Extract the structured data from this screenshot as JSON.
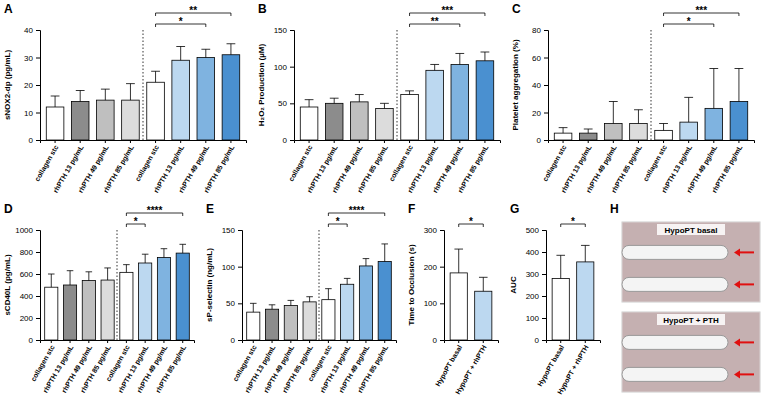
{
  "chart_data": [
    {
      "type": "bar",
      "panel": "A",
      "y_label": "sNOX2-dp (pg/mL)",
      "categories": [
        "collagen stc",
        "rhPTH 13 pg/mL",
        "rhPTH 49 pg/mL",
        "rhPTH 85 pg/mL",
        "collagen stc",
        "rhPTH 13 pg/mL",
        "rhPTH 49 pg/mL",
        "rhPTH 85 pg/mL"
      ],
      "values": [
        12,
        14,
        14.5,
        14.5,
        21,
        29,
        30,
        31
      ],
      "errors": [
        4,
        4,
        4,
        6,
        4,
        5,
        3,
        4
      ],
      "colors": [
        "#ffffff",
        "#8c8c8c",
        "#bfbfbf",
        "#dcdcdc",
        "#ffffff",
        "#bcd8f0",
        "#7fb3e0",
        "#4a90d0"
      ],
      "ylim": [
        0,
        40
      ],
      "yticks": [
        0,
        10,
        20,
        30,
        40
      ],
      "annotations": [
        {
          "text": "**",
          "from": 4,
          "to": 7
        },
        {
          "text": "*",
          "from": 4,
          "to": 6
        }
      ]
    },
    {
      "type": "bar",
      "panel": "B",
      "y_label": "H₂O₂ Production (µM)",
      "categories": [
        "collagen stc",
        "rhPTH 13 pg/mL",
        "rhPTH 49 pg/mL",
        "rhPTH 85 pg/mL",
        "collagen stc",
        "rhPTH 13 pg/mL",
        "rhPTH 49 pg/mL",
        "rhPTH 85 pg/mL"
      ],
      "values": [
        45,
        50,
        52,
        43,
        62,
        95,
        103,
        108
      ],
      "errors": [
        10,
        7,
        10,
        7,
        5,
        8,
        15,
        12
      ],
      "colors": [
        "#ffffff",
        "#8c8c8c",
        "#bfbfbf",
        "#dcdcdc",
        "#ffffff",
        "#bcd8f0",
        "#7fb3e0",
        "#4a90d0"
      ],
      "ylim": [
        0,
        150
      ],
      "yticks": [
        0,
        50,
        100,
        150
      ],
      "annotations": [
        {
          "text": "***",
          "from": 4,
          "to": 7
        },
        {
          "text": "**",
          "from": 4,
          "to": 6
        }
      ]
    },
    {
      "type": "bar",
      "panel": "C",
      "y_label": "Platelet aggregation (%)",
      "categories": [
        "collagen stc",
        "rhPTH 13 pg/mL",
        "rhPTH 49 pg/mL",
        "rhPTH 85 pg/mL",
        "collagen stc",
        "rhPTH 13 pg/mL",
        "rhPTH 49 pg/mL",
        "rhPTH 85 pg/mL"
      ],
      "values": [
        5,
        5,
        12,
        12,
        7,
        13,
        23,
        28
      ],
      "errors": [
        4,
        3,
        16,
        10,
        5,
        18,
        29,
        24
      ],
      "colors": [
        "#ffffff",
        "#8c8c8c",
        "#bfbfbf",
        "#dcdcdc",
        "#ffffff",
        "#bcd8f0",
        "#7fb3e0",
        "#4a90d0"
      ],
      "ylim": [
        0,
        80
      ],
      "yticks": [
        0,
        20,
        40,
        60,
        80
      ],
      "annotations": [
        {
          "text": "***",
          "from": 4,
          "to": 7
        },
        {
          "text": "*",
          "from": 4,
          "to": 6
        }
      ]
    },
    {
      "type": "bar",
      "panel": "D",
      "y_label": "sCD40L (pg/mL)",
      "categories": [
        "collagen stc",
        "rhPTH 13 pg/mL",
        "rhPTH 49 pg/mL",
        "rhPTH 85 pg/mL",
        "collagen stc",
        "rhPTH 13 pg/mL",
        "rhPTH 49 pg/mL",
        "rhPTH 85 pg/mL"
      ],
      "values": [
        480,
        500,
        540,
        545,
        615,
        700,
        750,
        790
      ],
      "errors": [
        120,
        130,
        80,
        110,
        70,
        80,
        80,
        80
      ],
      "colors": [
        "#ffffff",
        "#8c8c8c",
        "#bfbfbf",
        "#dcdcdc",
        "#ffffff",
        "#bcd8f0",
        "#7fb3e0",
        "#4a90d0"
      ],
      "ylim": [
        0,
        1000
      ],
      "yticks": [
        0,
        200,
        400,
        600,
        800,
        1000
      ],
      "annotations": [
        {
          "text": "****",
          "from": 4,
          "to": 7
        },
        {
          "text": "*",
          "from": 4,
          "to": 5
        }
      ]
    },
    {
      "type": "bar",
      "panel": "E",
      "y_label": "sP-selectin (ng/mL)",
      "categories": [
        "collagen stc",
        "rhPTH 13 pg/mL",
        "rhPTH 49 pg/mL",
        "rhPTH 85 pg/mL",
        "collagen stc",
        "rhPTH 13 pg/mL",
        "rhPTH 49 pg/mL",
        "rhPTH 85 pg/mL"
      ],
      "values": [
        38,
        42,
        47,
        52,
        55,
        76,
        101,
        107
      ],
      "errors": [
        12,
        6,
        7,
        7,
        15,
        8,
        10,
        24
      ],
      "colors": [
        "#ffffff",
        "#8c8c8c",
        "#bfbfbf",
        "#dcdcdc",
        "#ffffff",
        "#bcd8f0",
        "#7fb3e0",
        "#4a90d0"
      ],
      "ylim": [
        0,
        150
      ],
      "yticks": [
        0,
        50,
        100,
        150
      ],
      "annotations": [
        {
          "text": "****",
          "from": 4,
          "to": 7
        },
        {
          "text": "*",
          "from": 4,
          "to": 5
        }
      ]
    },
    {
      "type": "bar",
      "panel": "F",
      "y_label": "Time to Occlusion (s)",
      "categories": [
        "HypoPT basal",
        "HypoPT + rhPTH"
      ],
      "values": [
        183,
        133
      ],
      "errors": [
        65,
        38
      ],
      "colors": [
        "#ffffff",
        "#bcd8f0"
      ],
      "ylim": [
        0,
        300
      ],
      "yticks": [
        0,
        100,
        200,
        300
      ],
      "annotations": [
        {
          "text": "*",
          "from": 0,
          "to": 1
        }
      ]
    },
    {
      "type": "bar",
      "panel": "G",
      "y_label": "AUC",
      "categories": [
        "HypoPT basal",
        "HypoPT + rhPTH"
      ],
      "values": [
        280,
        355
      ],
      "errors": [
        105,
        75
      ],
      "colors": [
        "#ffffff",
        "#bcd8f0"
      ],
      "ylim": [
        0,
        500
      ],
      "yticks": [
        0,
        100,
        200,
        300,
        400,
        500
      ],
      "annotations": [
        {
          "text": "*",
          "from": 0,
          "to": 1
        }
      ]
    }
  ],
  "image_panel": {
    "panel": "H",
    "captions": [
      "HypoPT basal",
      "HypoPT + PTH"
    ]
  }
}
